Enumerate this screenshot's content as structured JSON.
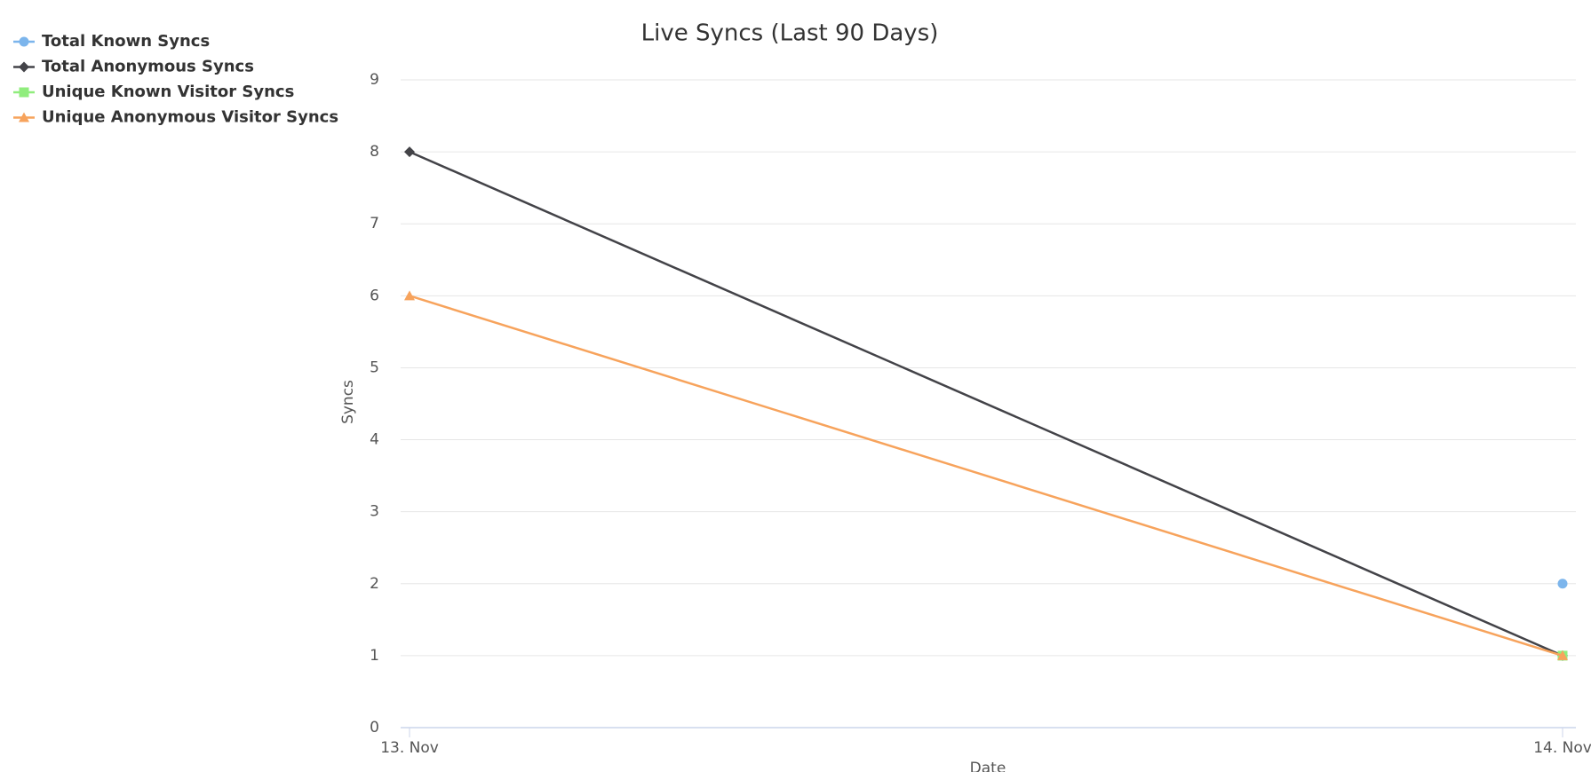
{
  "chart_data": {
    "type": "line",
    "title": "Live Syncs (Last 90 Days)",
    "x_label": "Date",
    "y_label": "Syncs",
    "categories": [
      "13. Nov",
      "14. Nov"
    ],
    "series": [
      {
        "name": "Total Known Syncs",
        "color": "#7cb5ec",
        "marker": "circle",
        "values": [
          null,
          2
        ]
      },
      {
        "name": "Total Anonymous Syncs",
        "color": "#434348",
        "marker": "diamond",
        "values": [
          8,
          1
        ]
      },
      {
        "name": "Unique Known Visitor Syncs",
        "color": "#90ed7d",
        "marker": "square",
        "values": [
          null,
          1
        ]
      },
      {
        "name": "Unique Anonymous Visitor Syncs",
        "color": "#f7a35c",
        "marker": "triangle",
        "values": [
          6,
          1
        ]
      }
    ],
    "ylim": [
      0,
      9
    ],
    "yticks": [
      0,
      1,
      2,
      3,
      4,
      5,
      6,
      7,
      8,
      9
    ],
    "grid": true,
    "legend": "top-left"
  }
}
